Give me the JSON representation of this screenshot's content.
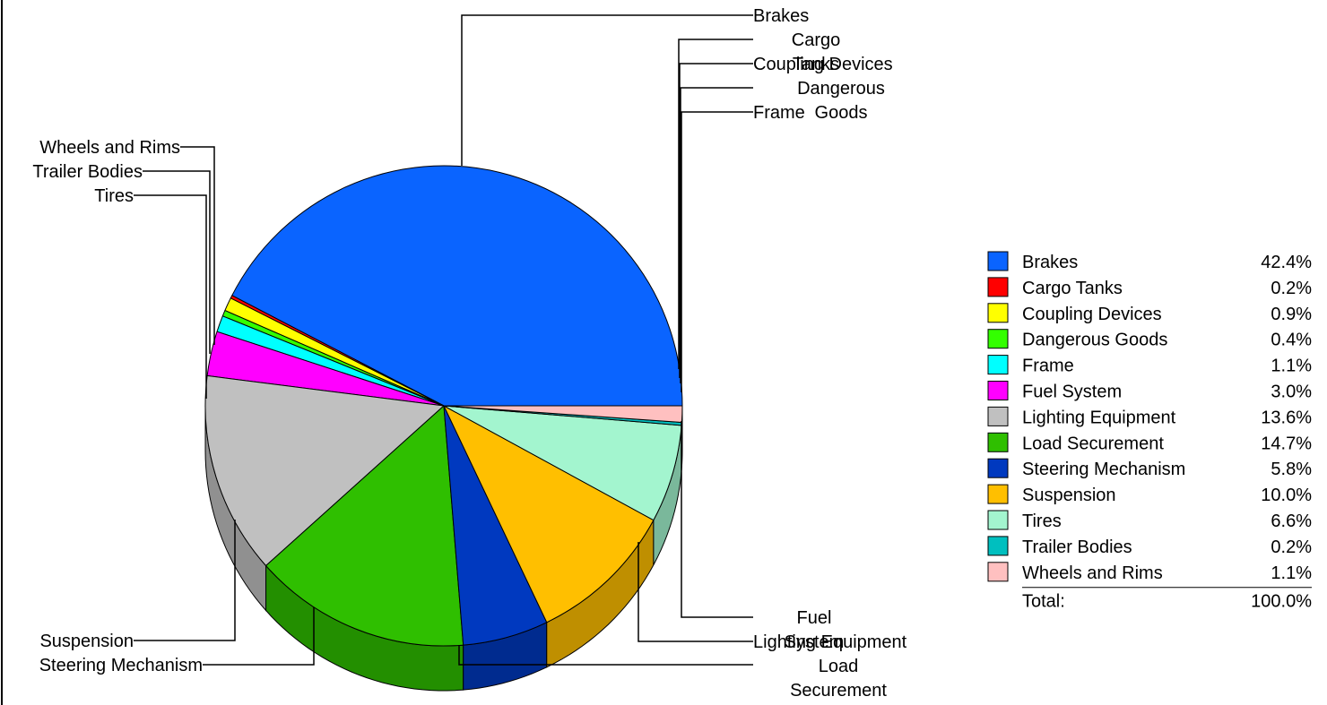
{
  "chart_data": {
    "type": "pie",
    "title": "",
    "start_angle_deg": 0,
    "direction": "counterclockwise",
    "legend": "right",
    "total_label": "Total:",
    "total_value": "100.0%",
    "slices": [
      {
        "name": "Brakes",
        "value": 42.4,
        "label": "42.4%",
        "color": "#0a64ff",
        "side_color": "#0a4ebf"
      },
      {
        "name": "Cargo Tanks",
        "value": 0.2,
        "label": "0.2%",
        "color": "#ff0000",
        "side_color": "#bf0000"
      },
      {
        "name": "Coupling Devices",
        "value": 0.9,
        "label": "0.9%",
        "color": "#ffff00",
        "side_color": "#bfbf00"
      },
      {
        "name": "Dangerous Goods",
        "value": 0.4,
        "label": "0.4%",
        "color": "#33ff00",
        "side_color": "#26bf00"
      },
      {
        "name": "Frame",
        "value": 1.1,
        "label": "1.1%",
        "color": "#00ffff",
        "side_color": "#00bfbf"
      },
      {
        "name": "Fuel System",
        "value": 3.0,
        "label": "3.0%",
        "color": "#ff00ff",
        "side_color": "#bf00bf"
      },
      {
        "name": "Lighting Equipment",
        "value": 13.6,
        "label": "13.6%",
        "color": "#c0c0c0",
        "side_color": "#909090"
      },
      {
        "name": "Load Securement",
        "value": 14.7,
        "label": "14.7%",
        "color": "#2fbf00",
        "side_color": "#238f00"
      },
      {
        "name": "Steering Mechanism",
        "value": 5.8,
        "label": "5.8%",
        "color": "#0039bf",
        "side_color": "#002b8f"
      },
      {
        "name": "Suspension",
        "value": 10.0,
        "label": "10.0%",
        "color": "#ffbf00",
        "side_color": "#bf8f00"
      },
      {
        "name": "Tires",
        "value": 6.6,
        "label": "6.6%",
        "color": "#a3f5cf",
        "side_color": "#7ab89b"
      },
      {
        "name": "Trailer Bodies",
        "value": 0.2,
        "label": "0.2%",
        "color": "#00bfbf",
        "side_color": "#008f8f"
      },
      {
        "name": "Wheels and Rims",
        "value": 1.1,
        "label": "1.1%",
        "color": "#ffc0c0",
        "side_color": "#bf9090"
      }
    ],
    "callouts": [
      {
        "slice": "Brakes",
        "lines": [
          "Brakes"
        ]
      },
      {
        "slice": "Cargo Tanks",
        "lines": [
          "Cargo",
          "Tanks"
        ]
      },
      {
        "slice": "Coupling Devices",
        "lines": [
          "Coupling Devices"
        ]
      },
      {
        "slice": "Dangerous Goods",
        "lines": [
          "Dangerous",
          "Goods"
        ]
      },
      {
        "slice": "Frame",
        "lines": [
          "Frame"
        ]
      },
      {
        "slice": "Fuel System",
        "lines": [
          "Fuel",
          "System"
        ]
      },
      {
        "slice": "Lighting Equipment",
        "lines": [
          "Lighting Equipment"
        ]
      },
      {
        "slice": "Load Securement",
        "lines": [
          "Load",
          "Securement"
        ]
      },
      {
        "slice": "Steering Mechanism",
        "lines": [
          "Steering Mechanism"
        ]
      },
      {
        "slice": "Suspension",
        "lines": [
          "Suspension"
        ]
      },
      {
        "slice": "Tires",
        "lines": [
          "Tires"
        ]
      },
      {
        "slice": "Trailer Bodies",
        "lines": [
          "Trailer Bodies"
        ]
      },
      {
        "slice": "Wheels and Rims",
        "lines": [
          "Wheels and Rims"
        ]
      }
    ]
  }
}
